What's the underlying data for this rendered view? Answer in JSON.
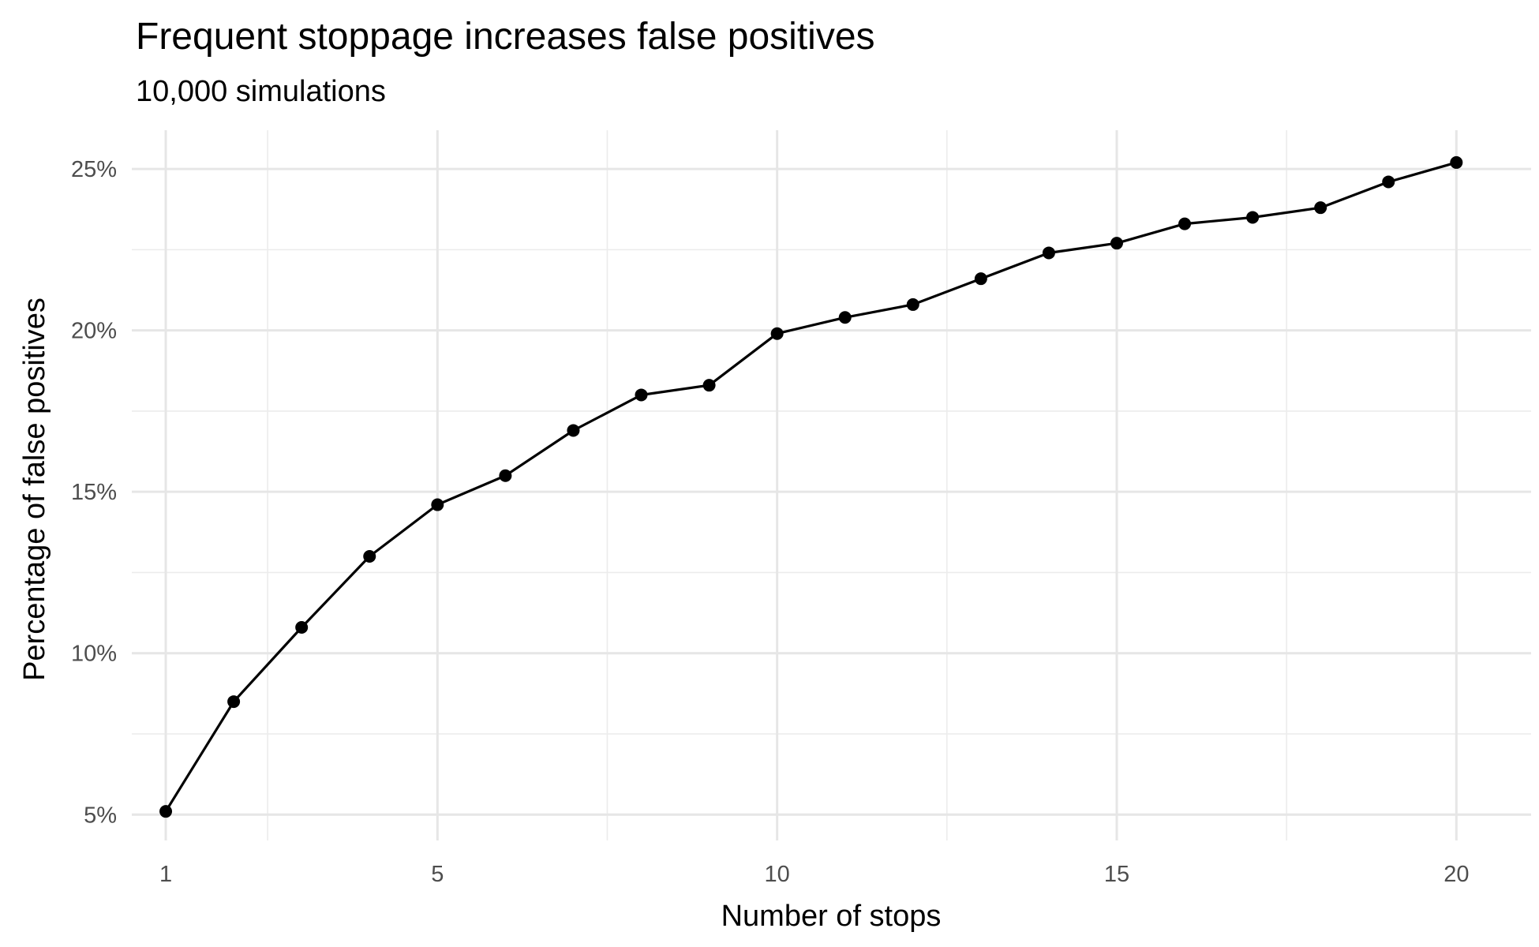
{
  "chart_data": {
    "type": "line",
    "title": "Frequent stoppage increases false positives",
    "subtitle": "10,000 simulations",
    "xlabel": "Number of stops",
    "ylabel": "Percentage of false positives",
    "xlim": [
      0.5,
      21.1
    ],
    "ylim": [
      4.2,
      26.2
    ],
    "x_ticks": [
      1,
      5,
      10,
      15,
      20
    ],
    "x_tick_labels": [
      "1",
      "5",
      "10",
      "15",
      "20"
    ],
    "x_minor": [
      2.5,
      7.5,
      12.5,
      17.5
    ],
    "y_ticks": [
      5,
      10,
      15,
      20,
      25
    ],
    "y_tick_labels": [
      "5%",
      "10%",
      "15%",
      "20%",
      "25%"
    ],
    "y_minor": [
      7.5,
      12.5,
      17.5,
      22.5
    ],
    "grid": true,
    "series": [
      {
        "x": [
          1,
          2,
          3,
          4,
          5,
          6,
          7,
          8,
          9,
          10,
          11,
          12,
          13,
          14,
          15,
          16,
          17,
          18,
          19,
          20
        ],
        "values": [
          5.1,
          8.5,
          10.8,
          13.0,
          14.6,
          15.5,
          16.9,
          18.0,
          18.3,
          19.9,
          20.4,
          20.8,
          21.6,
          22.4,
          22.7,
          23.3,
          23.5,
          23.8,
          24.6,
          25.2
        ]
      }
    ],
    "colors": {
      "line": "#000000",
      "grid": "#e6e6e6",
      "tick_text": "#4d4d4d"
    }
  }
}
